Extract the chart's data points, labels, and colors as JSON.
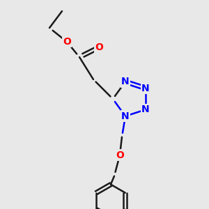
{
  "bg_color": "#e8e8e8",
  "bond_color": "#1a1a1a",
  "N_color": "#0000ff",
  "O_color": "#ff0000",
  "line_width": 1.8,
  "font_size": 10,
  "fig_size": [
    3.0,
    3.0
  ],
  "dpi": 100,
  "xlim": [
    0,
    300
  ],
  "ylim": [
    0,
    300
  ]
}
